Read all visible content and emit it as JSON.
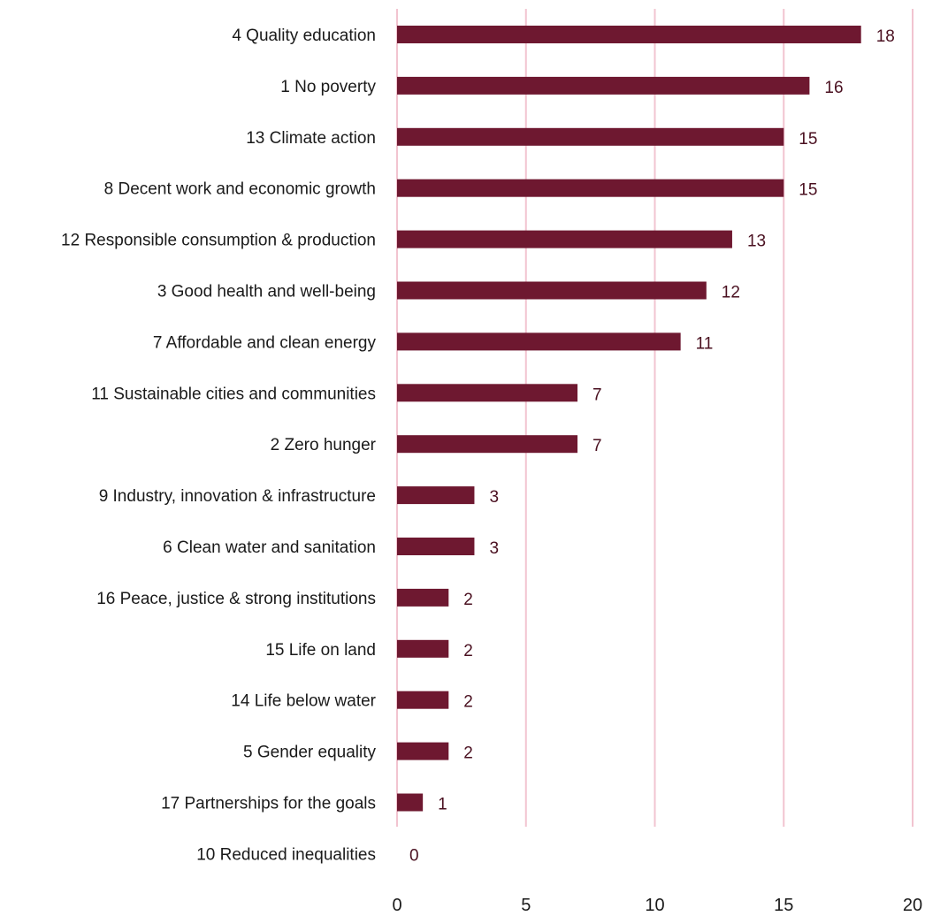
{
  "chart_data": {
    "type": "bar",
    "orientation": "horizontal",
    "title": "",
    "xlabel": "",
    "ylabel": "",
    "xlim": [
      0,
      20
    ],
    "xticks": [
      0,
      5,
      10,
      15,
      20
    ],
    "grid": true,
    "bar_color": "#6e1830",
    "grid_color": "#f2c4d0",
    "categories": [
      "4 Quality education",
      "1 No poverty",
      "13 Climate action",
      "8 Decent work and economic growth",
      "12 Responsible consumption & production",
      "3 Good health and well-being",
      "7 Affordable and clean energy",
      "11 Sustainable cities and communities",
      "2 Zero hunger",
      "9 Industry, innovation & infrastructure",
      "6 Clean water and sanitation",
      "16 Peace, justice & strong institutions",
      "15 Life on land",
      "14 Life below water",
      "5 Gender equality",
      "17 Partnerships for the goals",
      "10 Reduced inequalities"
    ],
    "values": [
      18,
      16,
      15,
      15,
      13,
      12,
      11,
      7,
      7,
      3,
      3,
      2,
      2,
      2,
      2,
      1,
      0
    ]
  }
}
